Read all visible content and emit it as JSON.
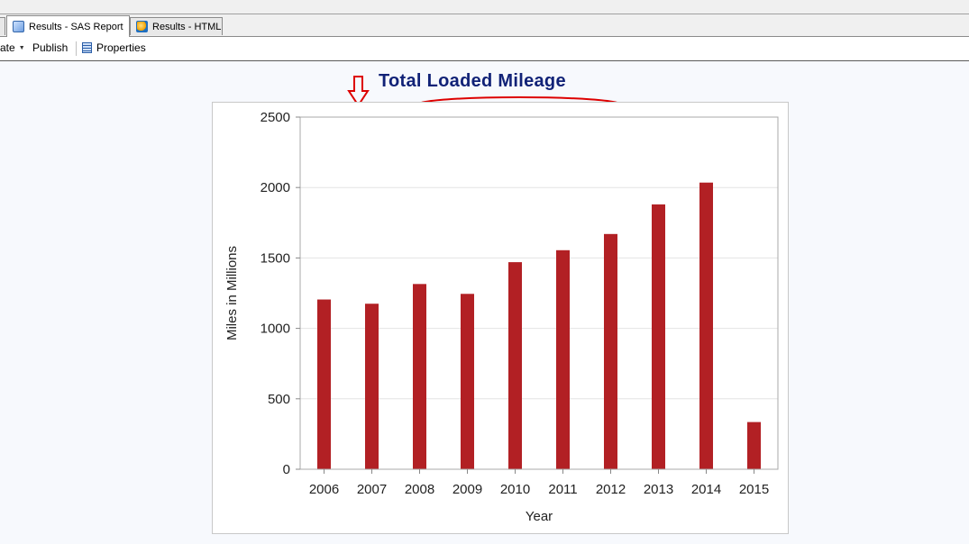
{
  "tabs": [
    {
      "label": ""
    },
    {
      "label": "Results - SAS Report",
      "icon": "sas-report-icon",
      "active": true
    },
    {
      "label": "Results - HTML",
      "icon": "html-browser-icon"
    }
  ],
  "toolbar": {
    "create_label": "ate",
    "publish_label": "Publish",
    "properties_label": "Properties"
  },
  "annotation": {
    "arrow_color": "#dd0000",
    "ellipse_color": "#dd0000"
  },
  "chart_data": {
    "type": "bar",
    "title": "Total Loaded Mileage",
    "xlabel": "Year",
    "ylabel": "Miles in Millions",
    "categories": [
      "2006",
      "2007",
      "2008",
      "2009",
      "2010",
      "2011",
      "2012",
      "2013",
      "2014",
      "2015"
    ],
    "values": [
      1205,
      1175,
      1315,
      1245,
      1470,
      1555,
      1670,
      1880,
      2035,
      335
    ],
    "ylim": [
      0,
      2500
    ],
    "yticks": [
      0,
      500,
      1000,
      1500,
      2000,
      2500
    ],
    "grid": true,
    "bar_color": "#b22024",
    "title_color": "#112277"
  }
}
